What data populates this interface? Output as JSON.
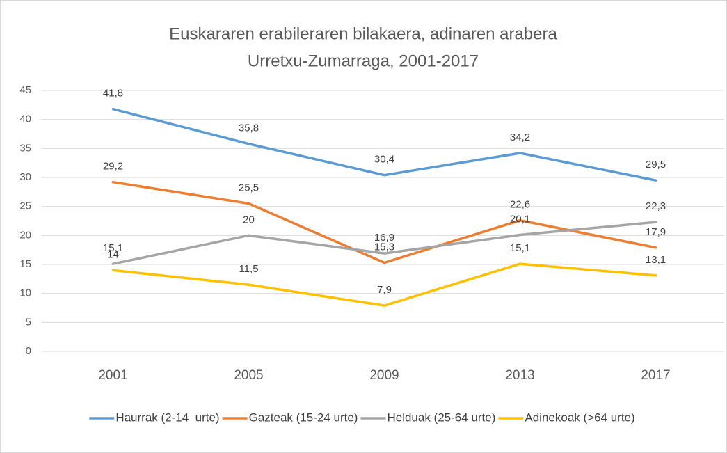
{
  "chart_data": {
    "type": "line",
    "title": "Euskararen erabileraren bilakaera, adinaren arabera",
    "subtitle": "Urretxu-Zumarraga, 2001-2017",
    "categories": [
      "2001",
      "2005",
      "2009",
      "2013",
      "2017"
    ],
    "series": [
      {
        "name": "Haurrak (2-14  urte)",
        "color": "#5b9bd5",
        "values": [
          41.8,
          35.8,
          30.4,
          34.2,
          29.5
        ],
        "value_labels": [
          "41,8",
          "35,8",
          "30,4",
          "34,2",
          "29,5"
        ]
      },
      {
        "name": "Gazteak (15-24 urte)",
        "color": "#ed7d31",
        "values": [
          29.2,
          25.5,
          15.3,
          22.6,
          17.9
        ],
        "value_labels": [
          "29,2",
          "25,5",
          "15,3",
          "22,6",
          "17,9"
        ]
      },
      {
        "name": "Helduak (25-64 urte)",
        "color": "#a5a5a5",
        "values": [
          15.1,
          20,
          16.9,
          20.1,
          22.3
        ],
        "value_labels": [
          "15,1",
          "20",
          "16,9",
          "20,1",
          "22,3"
        ]
      },
      {
        "name": "Adinekoak (>64 urte)",
        "color": "#ffc000",
        "values": [
          14,
          11.5,
          7.9,
          15.1,
          13.1
        ],
        "value_labels": [
          "14",
          "11,5",
          "7,9",
          "15,1",
          "13,1"
        ]
      }
    ],
    "ylim": [
      0,
      45
    ],
    "yticks": [
      0,
      5,
      10,
      15,
      20,
      25,
      30,
      35,
      40,
      45
    ],
    "grid": true,
    "legend": "bottom"
  }
}
